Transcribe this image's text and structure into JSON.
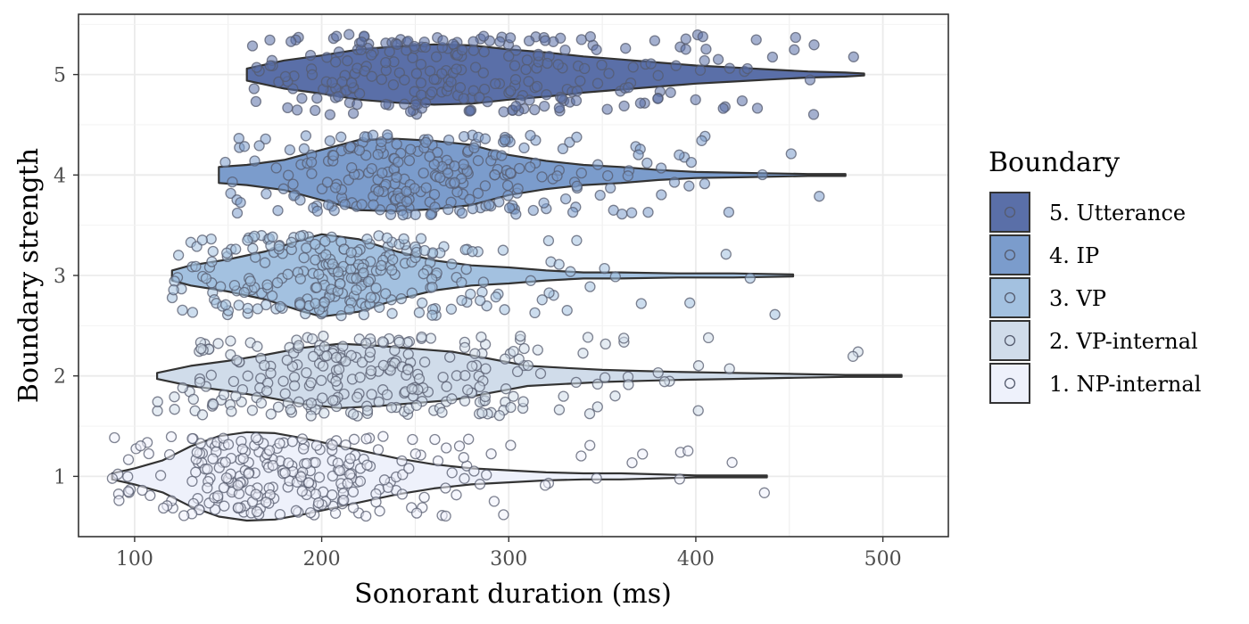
{
  "chart_data": {
    "type": "violin",
    "xlabel": "Sonorant duration (ms)",
    "ylabel": "Boundary strength",
    "xlim": [
      70,
      535
    ],
    "ylim": [
      0.4,
      5.6
    ],
    "xticks": [
      100,
      200,
      300,
      400,
      500
    ],
    "yticks": [
      1,
      2,
      3,
      4,
      5
    ],
    "grid": true,
    "legend": {
      "title": "Boundary",
      "position": "right",
      "entries": [
        {
          "label": "5. Utterance",
          "color": "#5a6fa8"
        },
        {
          "label": "4. IP",
          "color": "#7b9ccc"
        },
        {
          "label": "3. VP",
          "color": "#a3c1e0"
        },
        {
          "label": "2. VP-internal",
          "color": "#d0dcea"
        },
        {
          "label": "1. NP-internal",
          "color": "#eef1fb"
        }
      ]
    },
    "series": [
      {
        "name": "1. NP-internal",
        "y": 1,
        "color": "#eef1fb",
        "min": 88,
        "max": 438,
        "profile": [
          [
            88,
            0.03
          ],
          [
            100,
            0.08
          ],
          [
            115,
            0.16
          ],
          [
            130,
            0.3
          ],
          [
            145,
            0.4
          ],
          [
            160,
            0.44
          ],
          [
            175,
            0.43
          ],
          [
            190,
            0.38
          ],
          [
            205,
            0.32
          ],
          [
            220,
            0.26
          ],
          [
            240,
            0.18
          ],
          [
            260,
            0.12
          ],
          [
            280,
            0.08
          ],
          [
            300,
            0.06
          ],
          [
            320,
            0.04
          ],
          [
            340,
            0.03
          ],
          [
            360,
            0.03
          ],
          [
            380,
            0.02
          ],
          [
            400,
            0.01
          ],
          [
            438,
            0.01
          ]
        ],
        "points_range": [
          88,
          438
        ],
        "n_points": 260
      },
      {
        "name": "2. VP-internal",
        "y": 2,
        "color": "#d0dcea",
        "min": 112,
        "max": 510,
        "profile": [
          [
            112,
            0.03
          ],
          [
            130,
            0.1
          ],
          [
            150,
            0.15
          ],
          [
            170,
            0.21
          ],
          [
            190,
            0.28
          ],
          [
            210,
            0.32
          ],
          [
            230,
            0.3
          ],
          [
            250,
            0.27
          ],
          [
            270,
            0.24
          ],
          [
            290,
            0.17
          ],
          [
            310,
            0.1
          ],
          [
            330,
            0.08
          ],
          [
            350,
            0.06
          ],
          [
            370,
            0.05
          ],
          [
            390,
            0.04
          ],
          [
            420,
            0.03
          ],
          [
            450,
            0.02
          ],
          [
            480,
            0.01
          ],
          [
            510,
            0.01
          ]
        ],
        "points_range": [
          112,
          510
        ],
        "n_points": 260
      },
      {
        "name": "3. VP",
        "y": 3,
        "color": "#a3c1e0",
        "min": 120,
        "max": 452,
        "profile": [
          [
            120,
            0.05
          ],
          [
            130,
            0.1
          ],
          [
            150,
            0.16
          ],
          [
            170,
            0.24
          ],
          [
            190,
            0.36
          ],
          [
            200,
            0.41
          ],
          [
            220,
            0.36
          ],
          [
            240,
            0.24
          ],
          [
            260,
            0.15
          ],
          [
            280,
            0.1
          ],
          [
            300,
            0.08
          ],
          [
            320,
            0.05
          ],
          [
            340,
            0.03
          ],
          [
            360,
            0.03
          ],
          [
            390,
            0.02
          ],
          [
            420,
            0.02
          ],
          [
            452,
            0.01
          ]
        ],
        "points_range": [
          120,
          452
        ],
        "n_points": 260
      },
      {
        "name": "4. IP",
        "y": 4,
        "color": "#7b9ccc",
        "min": 145,
        "max": 480,
        "profile": [
          [
            145,
            0.08
          ],
          [
            160,
            0.1
          ],
          [
            180,
            0.15
          ],
          [
            200,
            0.25
          ],
          [
            220,
            0.35
          ],
          [
            240,
            0.36
          ],
          [
            260,
            0.34
          ],
          [
            280,
            0.3
          ],
          [
            300,
            0.2
          ],
          [
            320,
            0.14
          ],
          [
            340,
            0.1
          ],
          [
            360,
            0.08
          ],
          [
            380,
            0.05
          ],
          [
            400,
            0.03
          ],
          [
            430,
            0.02
          ],
          [
            460,
            0.01
          ],
          [
            480,
            0.01
          ]
        ],
        "points_range": [
          145,
          480
        ],
        "n_points": 260
      },
      {
        "name": "5. Utterance",
        "y": 5,
        "color": "#5a6fa8",
        "min": 160,
        "max": 490,
        "profile": [
          [
            160,
            0.06
          ],
          [
            180,
            0.14
          ],
          [
            200,
            0.19
          ],
          [
            220,
            0.25
          ],
          [
            240,
            0.28
          ],
          [
            260,
            0.3
          ],
          [
            280,
            0.29
          ],
          [
            300,
            0.25
          ],
          [
            320,
            0.22
          ],
          [
            340,
            0.18
          ],
          [
            360,
            0.15
          ],
          [
            380,
            0.12
          ],
          [
            400,
            0.09
          ],
          [
            420,
            0.07
          ],
          [
            440,
            0.05
          ],
          [
            460,
            0.03
          ],
          [
            480,
            0.02
          ],
          [
            490,
            0.01
          ]
        ],
        "points_range": [
          160,
          490
        ],
        "n_points": 260
      }
    ]
  }
}
